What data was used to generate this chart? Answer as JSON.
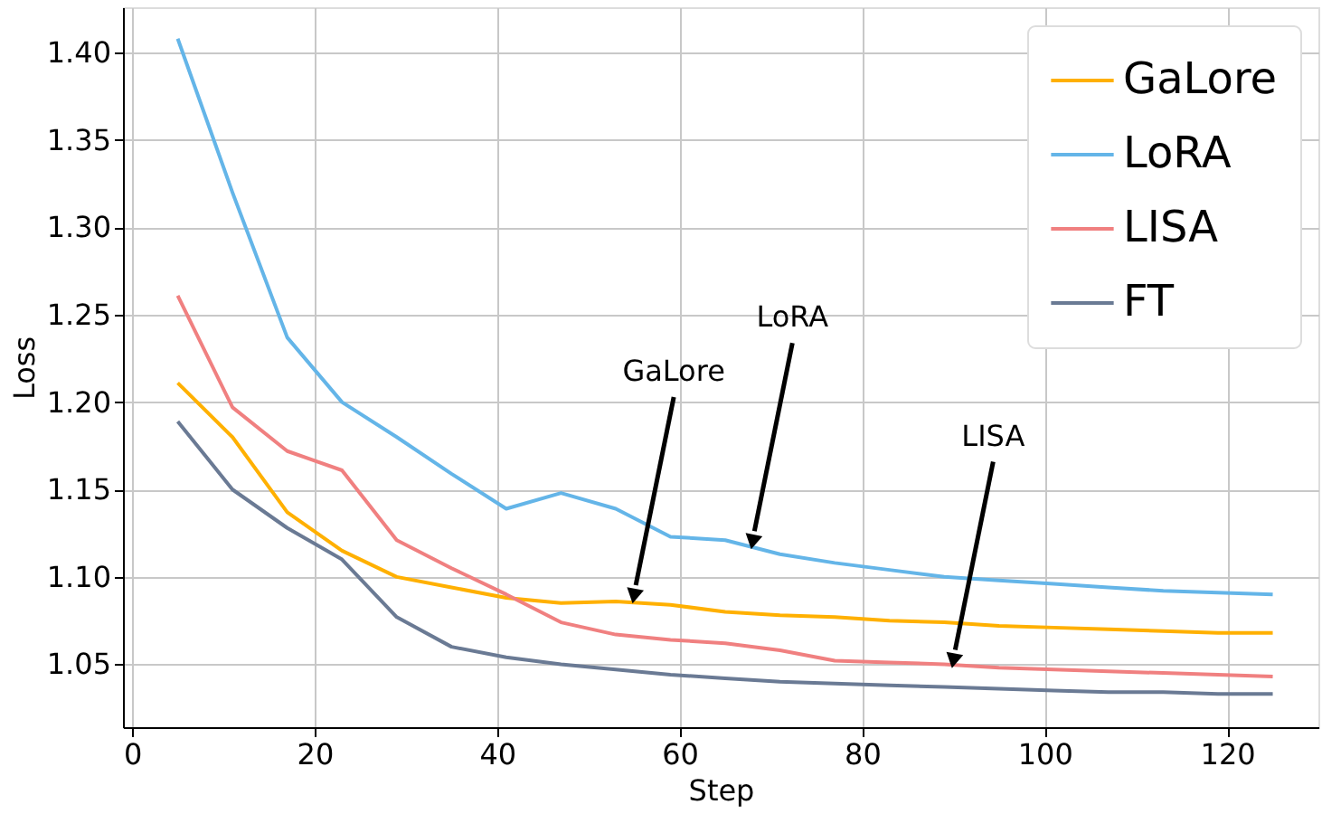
{
  "chart_data": {
    "type": "line",
    "xlabel": "Step",
    "ylabel": "Loss",
    "x": [
      5,
      11,
      17,
      23,
      29,
      35,
      41,
      47,
      53,
      59,
      65,
      71,
      77,
      83,
      89,
      95,
      101,
      107,
      113,
      119,
      125
    ],
    "series": [
      {
        "name": "GaLore",
        "color": "#ffb000",
        "values": [
          1.211,
          1.18,
          1.137,
          1.115,
          1.1,
          1.094,
          1.088,
          1.085,
          1.086,
          1.084,
          1.08,
          1.078,
          1.077,
          1.075,
          1.074,
          1.072,
          1.071,
          1.07,
          1.069,
          1.068,
          1.068
        ]
      },
      {
        "name": "LoRA",
        "color": "#64b5e8",
        "values": [
          1.408,
          1.32,
          1.237,
          1.2,
          1.18,
          1.159,
          1.139,
          1.148,
          1.139,
          1.123,
          1.121,
          1.113,
          1.108,
          1.104,
          1.1,
          1.098,
          1.096,
          1.094,
          1.092,
          1.091,
          1.09
        ]
      },
      {
        "name": "LISA",
        "color": "#f08080",
        "values": [
          1.261,
          1.197,
          1.172,
          1.161,
          1.121,
          1.105,
          1.09,
          1.074,
          1.067,
          1.064,
          1.062,
          1.058,
          1.052,
          1.051,
          1.05,
          1.048,
          1.047,
          1.046,
          1.045,
          1.044,
          1.043
        ]
      },
      {
        "name": "FT",
        "color": "#6a7a94",
        "values": [
          1.189,
          1.15,
          1.128,
          1.11,
          1.077,
          1.06,
          1.054,
          1.05,
          1.047,
          1.044,
          1.042,
          1.04,
          1.039,
          1.038,
          1.037,
          1.036,
          1.035,
          1.034,
          1.034,
          1.033,
          1.033
        ]
      }
    ],
    "annotations": [
      {
        "text": "GaLore",
        "x": 55,
        "y": 1.089
      },
      {
        "text": "LoRA",
        "x": 68,
        "y": 1.12
      },
      {
        "text": "LISA",
        "x": 90,
        "y": 1.052
      }
    ],
    "xlim": [
      -1,
      130
    ],
    "xticks": [
      0,
      20,
      40,
      60,
      80,
      100,
      120
    ],
    "ylim": [
      1.014,
      1.426
    ],
    "yticks": [
      1.05,
      {
        "value": 1.1,
        "label": "1.10"
      },
      1.15,
      {
        "value": 1.2,
        "label": "1.20"
      },
      1.25,
      {
        "value": 1.3,
        "label": "1.30"
      },
      1.35,
      {
        "value": 1.4,
        "label": "1.40"
      }
    ],
    "grid": true,
    "legend": "top right",
    "marker": "none",
    "line_style": "solid"
  }
}
